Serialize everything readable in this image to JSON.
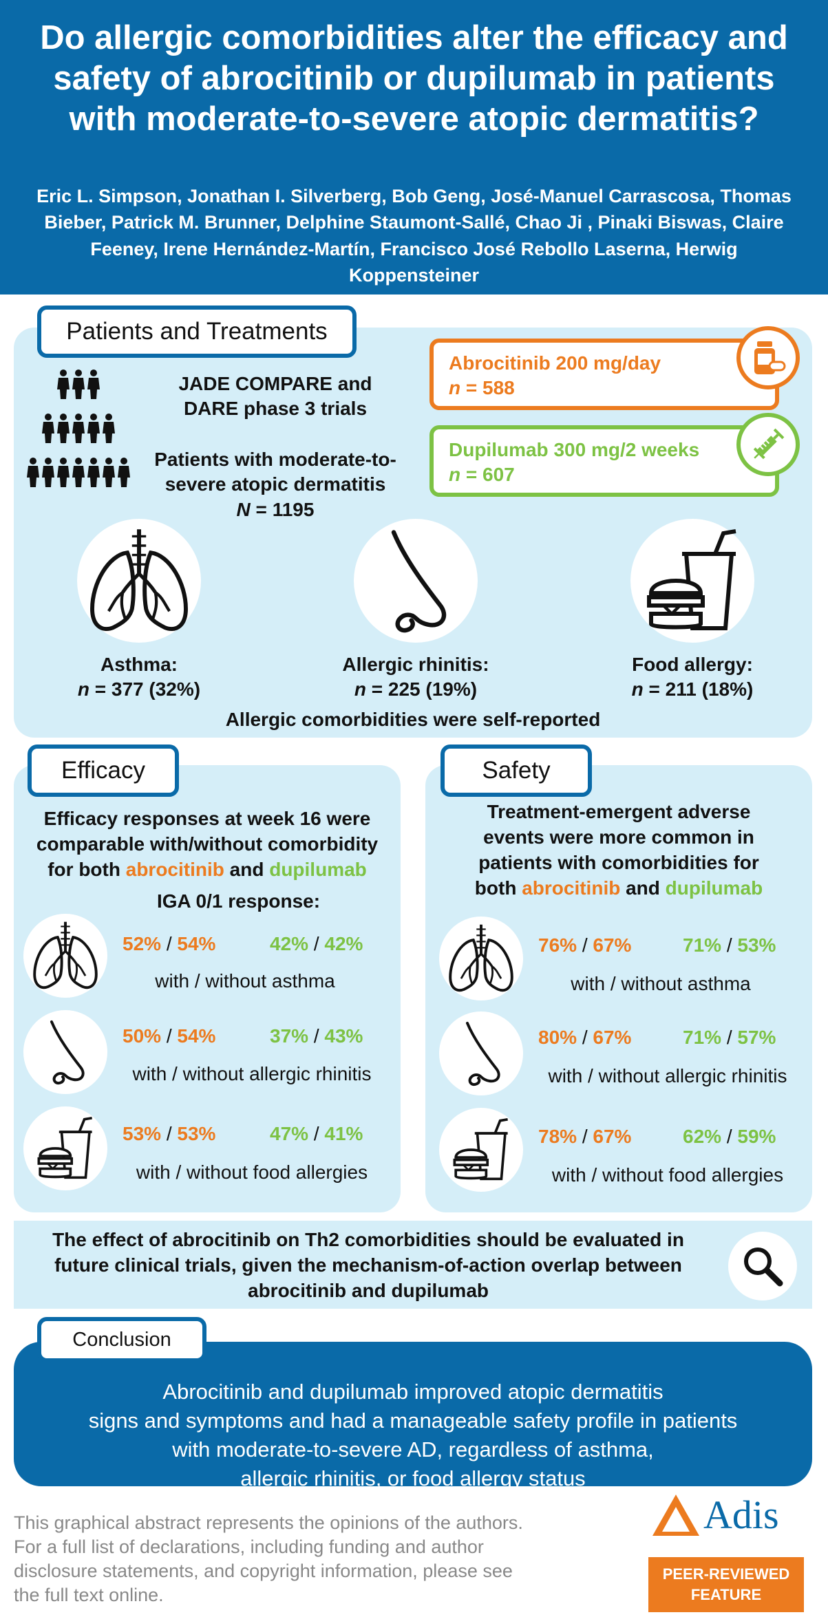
{
  "header": {
    "title": "Do allergic comorbidities alter the efficacy and safety of abrocitinib or dupilumab in patients with moderate-to-severe atopic dermatitis?",
    "authors": "Eric L. Simpson, Jonathan I. Silverberg, Bob Geng, José-Manuel Carrascosa, Thomas Bieber, Patrick M. Brunner, Delphine Staumont-Sallé, Chao Ji , Pinaki Biswas, Claire Feeney, Irene Hernández-Martín, Francisco José Rebollo Laserna, Herwig Koppensteiner"
  },
  "patients": {
    "tab": "Patients and Treatments",
    "trials_line1": "JADE COMPARE and",
    "trials_line2": "DARE phase 3 trials",
    "pop_line1": "Patients with moderate-to-",
    "pop_line2": "severe atopic dermatitis",
    "pop_n_label": "N",
    "pop_n_value": " = 1195",
    "abro_label": "Abrocitinib 200 mg/day",
    "abro_n_label": "n",
    "abro_n_value": " = 588",
    "dupi_label": "Dupilumab 300 mg/2 weeks",
    "dupi_n_label": "n",
    "dupi_n_value": " = 607",
    "asthma_label": "Asthma:",
    "asthma_n": " = 377 (32%)",
    "rhinitis_label": "Allergic rhinitis:",
    "rhinitis_n": " = 225 (19%)",
    "food_label": "Food allergy:",
    "food_n": " = 211 (18%)",
    "n_italic": "n",
    "self_reported": "Allergic comorbidities were self-reported"
  },
  "efficacy": {
    "tab": "Efficacy",
    "intro_1": "Efficacy responses at week 16 were",
    "intro_2": "comparable with/without comorbidity",
    "intro_3_pre": "for both ",
    "intro_3_abro": "abrocitinib",
    "intro_3_and": " and ",
    "intro_3_dupi": "dupilumab",
    "iga": "IGA 0/1 response:",
    "rows": [
      {
        "abro_with": "52%",
        "abro_without": "54%",
        "dupi_with": "42%",
        "dupi_without": "42%",
        "caption": "with / without asthma"
      },
      {
        "abro_with": "50%",
        "abro_without": "54%",
        "dupi_with": "37%",
        "dupi_without": "43%",
        "caption": "with / without allergic rhinitis"
      },
      {
        "abro_with": "53%",
        "abro_without": "53%",
        "dupi_with": "47%",
        "dupi_without": "41%",
        "caption": "with / without food allergies"
      }
    ]
  },
  "safety": {
    "tab": "Safety",
    "intro_1": "Treatment-emergent adverse",
    "intro_2": "events were more common in",
    "intro_3": "patients with comorbidities for",
    "intro_4_pre": "both ",
    "intro_4_abro": "abrocitinib",
    "intro_4_and": " and ",
    "intro_4_dupi": "dupilumab",
    "rows": [
      {
        "abro_with": "76%",
        "abro_without": "67%",
        "dupi_with": "71%",
        "dupi_without": "53%",
        "caption": "with / without asthma"
      },
      {
        "abro_with": "80%",
        "abro_without": "67%",
        "dupi_with": "71%",
        "dupi_without": "57%",
        "caption": "with / without allergic rhinitis"
      },
      {
        "abro_with": "78%",
        "abro_without": "67%",
        "dupi_with": "62%",
        "dupi_without": "59%",
        "caption": "with / without food allergies"
      }
    ]
  },
  "future": {
    "line1": "The effect of abrocitinib on Th2 comorbidities should be evaluated in",
    "line2": "future clinical trials, given the mechanism-of-action overlap between",
    "line3": "abrocitinib and dupilumab"
  },
  "conclusion": {
    "tab": "Conclusion",
    "line1": "Abrocitinib and dupilumab improved atopic dermatitis",
    "line2": "signs and symptoms and had a manageable safety profile in patients",
    "line3": "with moderate-to-severe AD, regardless of asthma,",
    "line4": "allergic rhinitis, or food allergy status"
  },
  "footer": {
    "line1": "This graphical abstract represents the opinions of the authors.",
    "line2": "For a full list of declarations, including funding and author",
    "line3": "disclosure statements, and copyright information, please see",
    "line4": "the full text online.",
    "brand": "Adis",
    "peer_line1": "PEER-REVIEWED",
    "peer_line2": "FEATURE"
  },
  "colors": {
    "header_blue": "#0a6aa8",
    "panel_blue": "#d5eef8",
    "abrocitinib_orange": "#ec7b1f",
    "dupilumab_green": "#7dc244"
  },
  "icons": [
    "people-group-icon",
    "pill-bottle-icon",
    "syringe-icon",
    "lungs-icon",
    "nose-icon",
    "food-icon",
    "magnifier-icon",
    "adis-logo"
  ]
}
